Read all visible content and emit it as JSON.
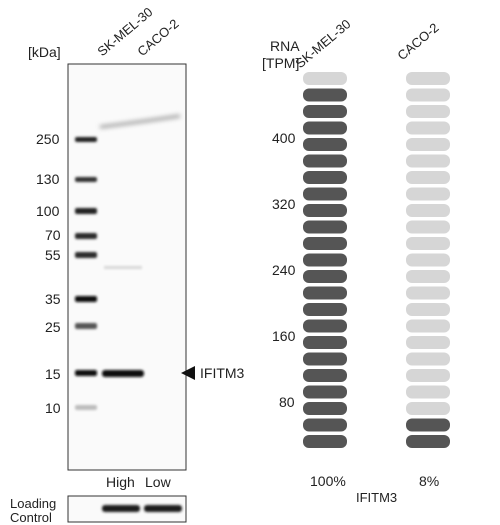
{
  "blot": {
    "unit_label": "[kDa]",
    "lane_labels": [
      "SK-MEL-30",
      "CACO-2"
    ],
    "markers": [
      "250",
      "130",
      "100",
      "70",
      "55",
      "35",
      "25",
      "15",
      "10"
    ],
    "target_label": "IFITM3",
    "expression_labels": [
      "High",
      "Low"
    ],
    "loading_control_label": [
      "Loading",
      "Control"
    ]
  },
  "rna": {
    "axis_title": [
      "RNA",
      "[TPM]"
    ],
    "ticks": [
      "400",
      "320",
      "240",
      "160",
      "80"
    ],
    "samples": [
      {
        "name": "SK-MEL-30",
        "percent_label": "100%",
        "filled_fraction": 1.0
      },
      {
        "name": "CACO-2",
        "percent_label": "8%",
        "filled_fraction": 0.08
      }
    ],
    "gene_label": "IFITM3",
    "colors": {
      "filled": "#555555",
      "empty": "#d6d6d6"
    }
  }
}
